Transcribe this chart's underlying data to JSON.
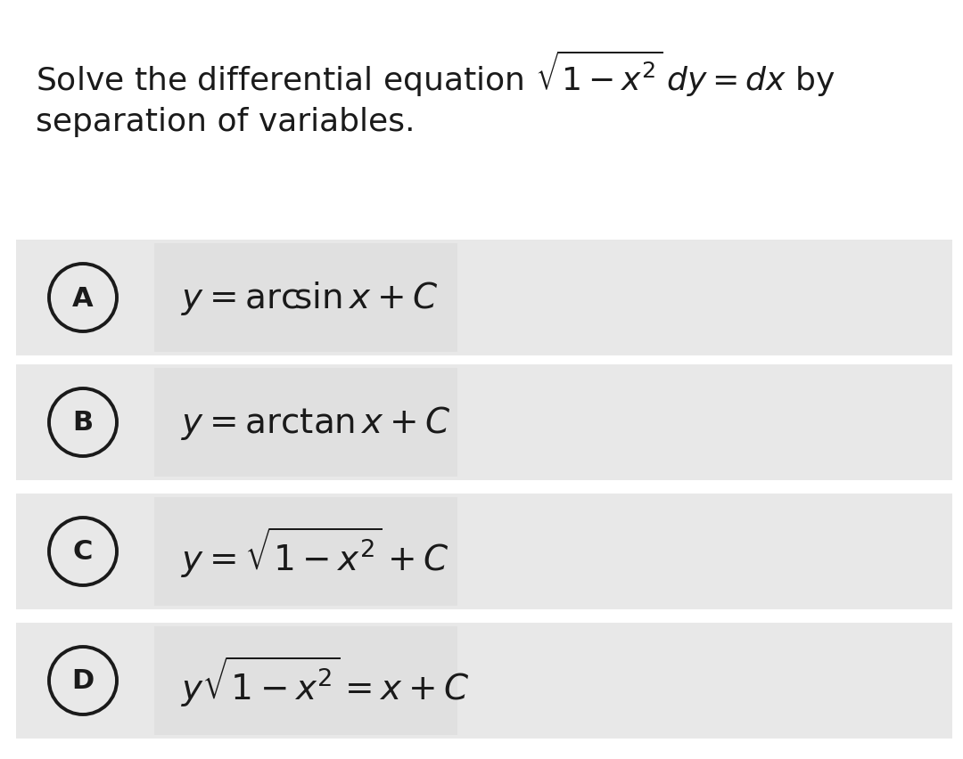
{
  "bg_color": "#ffffff",
  "option_row_bg": "#e8e8e8",
  "option_formula_bg": "#ebebeb",
  "text_color": "#1a1a1a",
  "circle_edge_color": "#1a1a1a",
  "figsize": [
    10.8,
    8.53
  ],
  "dpi": 100,
  "question_line1": "Solve the differential equation $\\sqrt{1-x^2}\\,dy=dx$ by",
  "question_line2": "separation of variables.",
  "options": [
    {
      "label": "A",
      "math": "$y = \\mathrm{arc}\\!\\sin x + C$"
    },
    {
      "label": "B",
      "math": "$y = \\mathrm{arc}\\tan x + C$"
    },
    {
      "label": "C",
      "math": "$y = \\sqrt{1-x^2} + C$"
    },
    {
      "label": "D",
      "math": "$y\\sqrt{1-x^2} = x + C$"
    }
  ],
  "question_fontsize": 26,
  "option_fontsize": 28,
  "label_fontsize": 22,
  "circle_linewidth": 2.8
}
